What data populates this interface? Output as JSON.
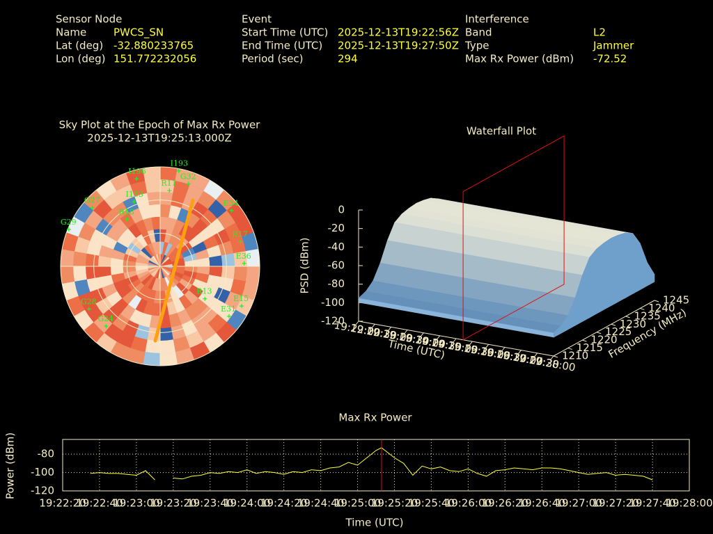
{
  "header": {
    "sensor_node": {
      "title": "Sensor Node",
      "rows": [
        {
          "label": "Name",
          "value": "PWCS_SN"
        },
        {
          "label": "Lat (deg)",
          "value": "-32.880233765"
        },
        {
          "label": "Lon (deg)",
          "value": "151.772232056"
        }
      ]
    },
    "event": {
      "title": "Event",
      "rows": [
        {
          "label": "Start Time (UTC)",
          "value": "2025-12-13T19:22:56Z"
        },
        {
          "label": "End Time (UTC)",
          "value": "2025-12-13T19:27:50Z"
        },
        {
          "label": "Period (sec)",
          "value": "294"
        }
      ]
    },
    "interference": {
      "title": "Interference",
      "rows": [
        {
          "label": "Band",
          "value": "L2"
        },
        {
          "label": "Type",
          "value": "Jammer"
        },
        {
          "label": "Max Rx Power (dBm)",
          "value": "-72.52"
        }
      ]
    }
  },
  "chart_data": [
    {
      "type": "sky",
      "title": "Sky Plot at the Epoch of Max Rx Power",
      "subtitle": "2025-12-13T19:25:13.000Z",
      "rings": [
        0,
        30,
        60
      ],
      "color": "#22ee22",
      "satellites": [
        {
          "name": "I193",
          "az": 11,
          "el": 2
        },
        {
          "name": "I196",
          "az": 345,
          "el": 8
        },
        {
          "name": "R11",
          "az": 7,
          "el": 21
        },
        {
          "name": "G32",
          "az": 19,
          "el": 11
        },
        {
          "name": "G27",
          "az": 311,
          "el": 9
        },
        {
          "name": "I183",
          "az": 338,
          "el": 27
        },
        {
          "name": "E34",
          "az": 52,
          "el": 8
        },
        {
          "name": "G29",
          "az": 292,
          "el": 1
        },
        {
          "name": "R18",
          "az": 325,
          "el": 38
        },
        {
          "name": "R17",
          "az": 73,
          "el": 14
        },
        {
          "name": "E36",
          "az": 88,
          "el": 14
        },
        {
          "name": "E15",
          "az": 116,
          "el": 8
        },
        {
          "name": "E31",
          "az": 126,
          "el": 13
        },
        {
          "name": "G28",
          "az": 239,
          "el": 15
        },
        {
          "name": "G24",
          "az": 222,
          "el": 17
        },
        {
          "name": "R13",
          "az": 126,
          "el": 40
        }
      ]
    },
    {
      "type": "surface",
      "title": "Waterfall Plot",
      "zlabel": "PSD (dBm)",
      "xlabel": "Time (UTC)",
      "ylabel": "Frequency (MHz)",
      "xlim": [
        "19:22:00",
        "19:28:00"
      ],
      "xticks": [
        "19:22:00",
        "19:22:30",
        "19:23:00",
        "19:23:30",
        "19:24:00",
        "19:24:30",
        "19:25:00",
        "19:25:30",
        "19:26:00",
        "19:26:30",
        "19:27:00",
        "19:27:30",
        "19:28:00"
      ],
      "ylim": [
        1210,
        1245
      ],
      "yticks": [
        1210,
        1215,
        1220,
        1225,
        1230,
        1235,
        1240,
        1245
      ],
      "zlim": [
        -120,
        0
      ],
      "zticks": [
        0,
        -20,
        -40,
        -60,
        -80,
        -100,
        -120
      ],
      "frequencies": [
        1210,
        1212.5,
        1215,
        1217.5,
        1220,
        1222.5,
        1225,
        1227.5,
        1230,
        1232.5,
        1235,
        1237.5,
        1240,
        1242.5,
        1245
      ],
      "values": [
        -95,
        -92,
        -85,
        -70,
        -50,
        -35,
        -30,
        -28,
        -27,
        -28,
        -30,
        -35,
        -50,
        -75,
        -92
      ],
      "marker": "19:25:13",
      "marker_color": "#dd1111"
    },
    {
      "type": "line",
      "title": "Max Rx Power",
      "ylabel": "Power (dBm)",
      "xlabel": "Time (UTC)",
      "color": "#ffff3c",
      "grid": true,
      "marker": "19:25:13",
      "marker_color": "#dd1111",
      "xlim": [
        "19:22:20",
        "19:28:00"
      ],
      "xticks": [
        "19:22:20",
        "19:22:40",
        "19:23:00",
        "19:23:20",
        "19:23:40",
        "19:24:00",
        "19:24:20",
        "19:24:40",
        "19:25:00",
        "19:25:20",
        "19:25:40",
        "19:26:00",
        "19:26:20",
        "19:26:40",
        "19:27:00",
        "19:27:20",
        "19:27:40",
        "19:28:00"
      ],
      "ylim": [
        -120,
        -64
      ],
      "yticks": [
        -80,
        -100,
        -120
      ],
      "x": [
        "19:22:35",
        "19:22:40",
        "19:22:45",
        "19:22:50",
        "19:22:55",
        "19:23:00",
        "19:23:05",
        "19:23:10",
        "19:23:15",
        "19:23:20",
        "19:23:25",
        "19:23:30",
        "19:23:35",
        "19:23:40",
        "19:23:45",
        "19:23:50",
        "19:23:55",
        "19:24:00",
        "19:24:05",
        "19:24:10",
        "19:24:15",
        "19:24:20",
        "19:24:25",
        "19:24:30",
        "19:24:35",
        "19:24:40",
        "19:24:45",
        "19:24:50",
        "19:24:55",
        "19:25:00",
        "19:25:05",
        "19:25:10",
        "19:25:13",
        "19:25:20",
        "19:25:25",
        "19:25:30",
        "19:25:35",
        "19:25:40",
        "19:25:45",
        "19:25:50",
        "19:25:55",
        "19:26:00",
        "19:26:05",
        "19:26:10",
        "19:26:15",
        "19:26:20",
        "19:26:25",
        "19:26:30",
        "19:26:35",
        "19:26:40",
        "19:26:45",
        "19:26:50",
        "19:26:55",
        "19:27:00",
        "19:27:05",
        "19:27:10",
        "19:27:15",
        "19:27:20",
        "19:27:25",
        "19:27:30",
        "19:27:35",
        "19:27:40"
      ],
      "values": [
        -101,
        -100,
        -101,
        -101,
        -102,
        -103,
        -98,
        -108,
        null,
        -106,
        -107,
        -104,
        -103,
        -100,
        -101,
        -99,
        -100,
        -97,
        -101,
        -99,
        -100,
        -102,
        -99,
        -100,
        -97,
        -98,
        -95,
        -94,
        -89,
        -92,
        -84,
        -76,
        -73,
        -84,
        -90,
        -103,
        -93,
        -96,
        -94,
        -98,
        -99,
        -96,
        -101,
        -104,
        -98,
        -97,
        -95,
        -96,
        -97,
        -95,
        -95,
        -96,
        -98,
        -100,
        -102,
        -101,
        -100,
        -103,
        -102,
        -103,
        -104,
        -108
      ]
    }
  ]
}
